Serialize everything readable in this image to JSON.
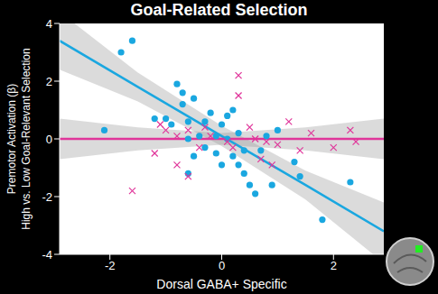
{
  "chart_data": {
    "type": "scatter",
    "title": "Goal-Related Selection",
    "x_label": "Dorsal GABA+ Specific",
    "y_label": [
      "Premotor Activation (β)",
      "High vs. Low Goal-Relevant Selection"
    ],
    "xlim": [
      -2.9,
      2.9
    ],
    "xticks": [
      -2,
      0,
      2
    ],
    "ylim": [
      -4,
      4
    ],
    "yticks": [
      -4,
      -2,
      0,
      2,
      4
    ],
    "grid": false,
    "series": [
      {
        "type": "scatter",
        "color": "#1aa7e0",
        "marker": "o",
        "x": [
          -1.8,
          -1.6,
          -2.1,
          -0.8,
          -0.7,
          -0.7,
          -0.5,
          -0.2,
          0.1,
          0.2,
          -1.0,
          -1.2,
          -0.9,
          -0.6,
          -0.3,
          0.0,
          -0.4,
          -0.6,
          -0.3,
          -0.1,
          0.1,
          0.3,
          -0.5,
          -0.1,
          0.2,
          0.0,
          0.3,
          0.4,
          0.5,
          0.6,
          0.7,
          0.8,
          1.0,
          1.4,
          1.3,
          0.9,
          1.8,
          2.3,
          0.4,
          -0.6
        ],
        "values": [
          3.0,
          3.4,
          0.3,
          1.9,
          1.6,
          1.2,
          1.4,
          0.9,
          0.8,
          1.0,
          0.7,
          0.7,
          0.5,
          0.6,
          0.6,
          0.5,
          0.1,
          0.0,
          -0.3,
          0.1,
          0.0,
          0.2,
          -0.6,
          -0.5,
          -0.6,
          -0.9,
          -0.9,
          -1.2,
          -1.6,
          -1.9,
          -0.4,
          0.1,
          0.3,
          -1.3,
          -0.8,
          -1.6,
          -2.8,
          -1.5,
          -0.4,
          -1.2
        ]
      },
      {
        "type": "scatter",
        "color": "#e0359a",
        "marker": "x",
        "x": [
          -1.6,
          -1.2,
          -1.1,
          -1.0,
          -0.8,
          -0.6,
          -0.4,
          -0.3,
          -0.2,
          0.1,
          0.2,
          0.3,
          0.3,
          0.5,
          0.6,
          0.7,
          0.8,
          1.0,
          1.2,
          1.4,
          1.6,
          2.0,
          2.3,
          2.4,
          -0.6,
          -0.8,
          0.9
        ],
        "values": [
          -1.8,
          -0.5,
          0.5,
          0.3,
          0.1,
          0.3,
          -0.3,
          0.4,
          0.1,
          -0.1,
          -0.3,
          2.2,
          1.5,
          0.4,
          0.0,
          -0.7,
          -0.1,
          -0.2,
          0.6,
          -0.4,
          0.2,
          -0.3,
          0.3,
          -0.1,
          -1.3,
          -0.9,
          -0.9
        ]
      },
      {
        "type": "line",
        "color": "#1aa7e0",
        "x": [
          -2.9,
          -1.5,
          0,
          1.5,
          2.9
        ],
        "values": [
          3.4,
          1.8,
          0.1,
          -1.6,
          -3.2
        ],
        "ci_lower": [
          2.4,
          1.3,
          -0.25,
          -2.1,
          -4.3
        ],
        "ci_upper": [
          4.4,
          2.3,
          0.45,
          -1.1,
          -2.2
        ]
      },
      {
        "type": "line",
        "color": "#e0359a",
        "x": [
          -2.9,
          -1.5,
          0,
          1.5,
          2.9
        ],
        "values": [
          0,
          0,
          0,
          0,
          0
        ],
        "ci_lower": [
          -0.7,
          -0.4,
          -0.2,
          -0.4,
          -0.7
        ],
        "ci_upper": [
          0.7,
          0.4,
          0.2,
          0.4,
          0.7
        ]
      }
    ]
  }
}
